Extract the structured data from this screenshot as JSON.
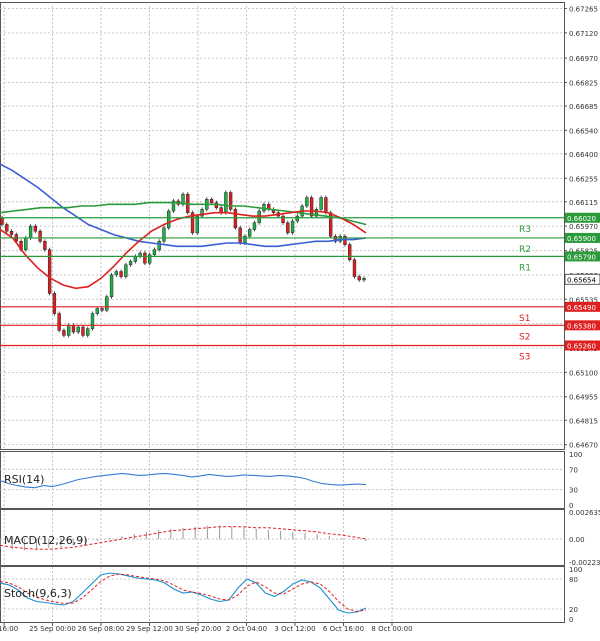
{
  "chart_data": [
    {
      "type": "candlestick",
      "x_labels": [
        "16:00",
        "25 Sep 00:00",
        "26 Sep 08:00",
        "29 Sep 12:00",
        "30 Sep 20:00",
        "2 Oct 04:00",
        "3 Oct 12:00",
        "6 Oct 16:00",
        "8 Oct 00:00"
      ],
      "y_ticks": [
        "0.67265",
        "0.67120",
        "0.66970",
        "0.66825",
        "0.66685",
        "0.66540",
        "0.66400",
        "0.66255",
        "0.66115",
        "0.65970",
        "0.65825",
        "0.65680",
        "0.65535",
        "0.65390",
        "0.65245",
        "0.65100",
        "0.64955",
        "0.64815",
        "0.64670"
      ],
      "ylim": [
        0.6465,
        0.6728
      ],
      "closes": [
        0.6598,
        0.6594,
        0.6592,
        0.6588,
        0.6583,
        0.659,
        0.6597,
        0.6594,
        0.6588,
        0.6583,
        0.6557,
        0.6545,
        0.6535,
        0.6532,
        0.6538,
        0.6534,
        0.6537,
        0.6532,
        0.6536,
        0.6545,
        0.6548,
        0.6547,
        0.6555,
        0.6568,
        0.657,
        0.6567,
        0.6574,
        0.6576,
        0.6579,
        0.6581,
        0.6575,
        0.658,
        0.6583,
        0.6588,
        0.6596,
        0.6606,
        0.6612,
        0.661,
        0.6616,
        0.6605,
        0.6593,
        0.6603,
        0.6607,
        0.6613,
        0.6611,
        0.6608,
        0.6605,
        0.6617,
        0.6607,
        0.6596,
        0.6587,
        0.6591,
        0.6595,
        0.6599,
        0.6606,
        0.661,
        0.6607,
        0.6605,
        0.6603,
        0.6599,
        0.6593,
        0.66,
        0.6603,
        0.6609,
        0.6614,
        0.6603,
        0.6607,
        0.6614,
        0.6605,
        0.6591,
        0.6588,
        0.6591,
        0.6586,
        0.6577,
        0.6567,
        0.6565,
        0.6566
      ],
      "series": [
        {
          "name": "",
          "color": "#3a5fd8",
          "values": [
            0.6634,
            0.663,
            0.6625,
            0.662,
            0.6614,
            0.6608,
            0.6603,
            0.6598,
            0.6595,
            0.6592,
            0.659,
            0.6588,
            0.6587,
            0.6586,
            0.6585,
            0.6585,
            0.6585,
            0.6586,
            0.6587,
            0.6587,
            0.6586,
            0.6585,
            0.6585,
            0.6586,
            0.6587,
            0.6588,
            0.6588,
            0.6589,
            0.6589,
            0.659
          ]
        },
        {
          "name": "",
          "color": "#2a9a3a",
          "values": [
            0.6605,
            0.6606,
            0.6607,
            0.6608,
            0.6608,
            0.6608,
            0.6609,
            0.6609,
            0.661,
            0.661,
            0.661,
            0.6611,
            0.6611,
            0.6611,
            0.661,
            0.661,
            0.661,
            0.6609,
            0.6609,
            0.6608,
            0.6607,
            0.6606,
            0.6605,
            0.6604,
            0.6603,
            0.6602,
            0.66,
            0.6598
          ]
        },
        {
          "name": "",
          "color": "#e02020",
          "values": [
            0.6595,
            0.659,
            0.658,
            0.6572,
            0.6566,
            0.6562,
            0.656,
            0.6561,
            0.6566,
            0.6573,
            0.6581,
            0.6588,
            0.6594,
            0.6598,
            0.6601,
            0.6603,
            0.6604,
            0.6605,
            0.6605,
            0.6604,
            0.6603,
            0.6603,
            0.6604,
            0.6605,
            0.6606,
            0.6606,
            0.6605,
            0.6602,
            0.6598,
            0.6593
          ]
        }
      ],
      "levels": [
        {
          "label": "R3",
          "value": 0.6602,
          "price_label": "0.66020",
          "color": "#2a9a3a"
        },
        {
          "label": "R2",
          "value": 0.659,
          "price_label": "0.65900",
          "color": "#2a9a3a"
        },
        {
          "label": "R1",
          "value": 0.6579,
          "price_label": "0.65790",
          "color": "#2a9a3a"
        },
        {
          "label": "S1",
          "value": 0.6549,
          "price_label": "0.65490",
          "color": "#e02020"
        },
        {
          "label": "S2",
          "value": 0.6538,
          "price_label": "0.65380",
          "color": "#e02020"
        },
        {
          "label": "S3",
          "value": 0.6526,
          "price_label": "0.65260",
          "color": "#e02020"
        }
      ],
      "current_price": "0.65654",
      "grid": true
    },
    {
      "type": "line",
      "title": "RSI(14)",
      "ylim": [
        0,
        100
      ],
      "y_ticks": [
        "100",
        "70",
        "30",
        "0"
      ],
      "series": [
        {
          "name": "",
          "color": "#3a7bd5",
          "values": [
            48,
            42,
            38,
            35,
            34,
            38,
            36,
            40,
            45,
            50,
            53,
            56,
            58,
            60,
            62,
            60,
            58,
            59,
            61,
            62,
            60,
            58,
            55,
            57,
            60,
            58,
            56,
            57,
            59,
            58,
            57,
            56,
            58,
            57,
            55,
            52,
            46,
            42,
            40,
            39,
            40,
            41,
            40
          ]
        }
      ]
    },
    {
      "type": "bar",
      "title": "MACD(12,26,9)",
      "ylim": [
        -0.002236,
        0.002635
      ],
      "y_ticks": [
        "0.002635",
        "0.00",
        "-0.002236"
      ],
      "values": [
        -0.0009,
        -0.001,
        -0.0011,
        -0.001,
        -0.0009,
        -0.0008,
        -0.0006,
        -0.0004,
        -0.0002,
        0.0001,
        0.0003,
        0.0005,
        0.0007,
        0.0009,
        0.001,
        0.0011,
        0.0012,
        0.0013,
        0.0013,
        0.0012,
        0.0011,
        0.001,
        0.0009,
        0.0008,
        0.0007,
        0.0006,
        0.0005,
        0.0003,
        0.0001,
        -0.0001,
        -0.0002
      ],
      "series": [
        {
          "name": "",
          "color": "#e02020",
          "values": [
            -0.0006,
            -0.0008,
            -0.0009,
            -0.001,
            -0.001,
            -0.0009,
            -0.0008,
            -0.0006,
            -0.0004,
            -0.0002,
            0.0,
            0.0002,
            0.0004,
            0.0006,
            0.0008,
            0.0009,
            0.001,
            0.0011,
            0.0012,
            0.0012,
            0.0012,
            0.0011,
            0.0011,
            0.001,
            0.0009,
            0.0008,
            0.0007,
            0.0005,
            0.0004,
            0.0002,
            0.0
          ]
        }
      ]
    },
    {
      "type": "line",
      "title": "Stoch(9,6,3)",
      "ylim": [
        0,
        100
      ],
      "y_ticks": [
        "100",
        "80",
        "20",
        "0"
      ],
      "series": [
        {
          "name": "",
          "color": "#1a8fd0",
          "values": [
            72,
            68,
            58,
            42,
            35,
            33,
            30,
            28,
            35,
            52,
            70,
            88,
            92,
            90,
            86,
            82,
            80,
            78,
            72,
            60,
            52,
            54,
            48,
            40,
            35,
            38,
            62,
            80,
            72,
            52,
            45,
            55,
            70,
            78,
            74,
            62,
            40,
            18,
            12,
            14,
            22
          ]
        },
        {
          "name": "",
          "color": "#e02020",
          "values": [
            75,
            72,
            64,
            52,
            44,
            38,
            34,
            31,
            32,
            42,
            58,
            75,
            86,
            90,
            88,
            85,
            82,
            80,
            76,
            68,
            58,
            54,
            51,
            46,
            40,
            38,
            48,
            66,
            74,
            64,
            52,
            50,
            60,
            70,
            74,
            70,
            55,
            35,
            20,
            15,
            18
          ]
        }
      ]
    }
  ]
}
